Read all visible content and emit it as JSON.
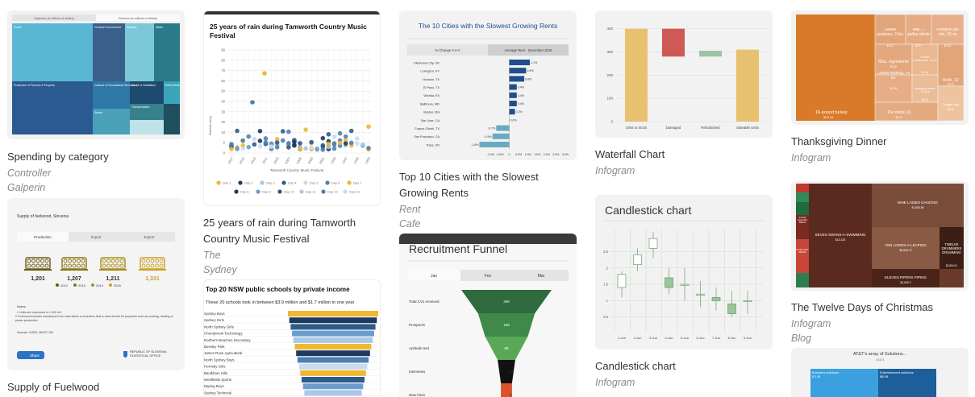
{
  "cards": [
    {
      "title": "Spending by category",
      "author": "Controller Galperin",
      "tabs": [
        "Expenses (in millions of dollars)",
        "Revenue (in millions of dollars)"
      ],
      "cells": [
        "Power",
        "General Government",
        "Industry",
        "Water",
        "Protection of Persons & Property",
        "Cultural & Recreational Services",
        "Health & Sanitation",
        "Public Works",
        "Transportation",
        "Sewer"
      ]
    },
    {
      "title": "25 years of rain during Tamworth Country Music Festival",
      "author": "The Sydney Morning Herald",
      "chart_title": "25 years of rain during Tamworth Country Music Festival",
      "ylabel": "Rainfall (mm)",
      "xlabel": "Tamworth Country Music Festival",
      "yticks": [
        "90",
        "80",
        "70",
        "60",
        "50",
        "40",
        "30",
        "20",
        "10",
        "5",
        "0"
      ],
      "xticks": [
        "2017",
        "2015",
        "2013",
        "2011",
        "2009",
        "2007",
        "2005",
        "2003",
        "2001",
        "1999",
        "1997",
        "1995",
        "1993"
      ],
      "legend": [
        "Day 1",
        "Day 2",
        "Day 3",
        "Day 4",
        "Day 5",
        "Day 6",
        "Day 7",
        "Day 8",
        "Day 9",
        "Day 10",
        "Day 11",
        "Day 12",
        "Day 13"
      ],
      "legend_colors": [
        "#f0b732",
        "#1e3a5f",
        "#a8c8e8",
        "#2e5c8a",
        "#c9ddf0",
        "#4f7fb0",
        "#f0b732",
        "#1e3a5f",
        "#6a9ccc",
        "#2e5c8a",
        "#a8c8e8",
        "#4f7fb0",
        "#c9ddf0"
      ]
    },
    {
      "title": "Top 10 Cities with the Slowest Growing Rents",
      "author": "Rent Cafe",
      "chart_title": "The 10 Cities with the Slowest Growing Rents",
      "tabs": [
        "% Change Y-o-Y",
        "Average Rent - December 2016"
      ],
      "chart_data": {
        "type": "bar",
        "categories": [
          "Oklahoma City, OK",
          "Lexington, KY",
          "Houston, TX",
          "El Paso, TX",
          "Wichita, KS",
          "Baltimore, MD",
          "Boston, MA",
          "San Jose, CA",
          "Corpus Christi, TX",
          "San Francisco, CA",
          "Tulsa, OK"
        ],
        "values": [
          1.1,
          0.9,
          0.8,
          0.4,
          0.4,
          0.4,
          0.3,
          0.0,
          -0.7,
          -0.9,
          -1.6
        ],
        "labels": [
          "1.1%",
          "0.9%",
          "0.8%",
          "0.4%",
          "0.4%",
          "0.4%",
          "0.3%",
          "0.0%",
          "-0.7%",
          "-0.9%",
          "-1.6%"
        ],
        "xticks": [
          "-1.0%",
          "-0.5%",
          "0",
          "0.5%",
          "1.0%",
          "1.5%",
          "2.0%",
          "2.5%",
          "3.0%"
        ],
        "xlim": [
          -1.75,
          3.0
        ]
      }
    },
    {
      "title": "Waterfall Chart",
      "author": "Infogram",
      "chart_data": {
        "type": "bar",
        "categories": [
          "Units in Stock",
          "Damaged",
          "Refurbished",
          "Saleable Units"
        ],
        "ranges": [
          [
            0,
            400
          ],
          [
            280,
            400
          ],
          [
            280,
            305
          ],
          [
            0,
            310
          ]
        ],
        "colors": [
          "#e8c170",
          "#cf5a55",
          "#9bc4a6",
          "#e8c170"
        ],
        "yticks": [
          "400",
          "300",
          "200",
          "100",
          "0"
        ],
        "ylim": [
          0,
          430
        ]
      }
    },
    {
      "title": "Thanksgiving Dinner",
      "author": "Infogram",
      "cells": [
        {
          "label": "16-pound turkey",
          "value": "$23.04"
        },
        {
          "label": "Sweet potatoes, 3 lbs.",
          "value": "$3.37"
        },
        {
          "label": "Milk, 1 gallon whole",
          "value": "$3.37"
        },
        {
          "label": "Pumpkin pie mix, 30 oz",
          "value": "$3.24"
        },
        {
          "label": "Misc. ingredients",
          "value": "$3.26"
        },
        {
          "label": "Frozen Cranberries, 12 oz",
          "value": "$2.44"
        },
        {
          "label": "Cubed stuffing, 14 oz.",
          "value": "$2.98"
        },
        {
          "label": "Rolls, 12",
          "value": "$2.27"
        },
        {
          "label": "Whipping cream, 1/2 pint",
          "value": "$2.02"
        },
        {
          "label": "Pie shells (2)",
          "value": "$2.47"
        },
        {
          "label": "Veggie tray",
          "value": "$0.74"
        }
      ]
    },
    {
      "title": "Supply of Fuelwood",
      "author": "",
      "chart_title": "Supply of fuelwood, Slovenia",
      "tabs": [
        "Production",
        "Import",
        "Export"
      ],
      "values": [
        "1,201",
        "1,207",
        "1,211",
        "1,331"
      ],
      "legend": [
        "2012",
        "2013",
        "2014",
        "2015"
      ],
      "notes_title": "Notes:",
      "notes": [
        "1 Units are expressed in 1,000 m3.",
        "2 Fuelwood includes roundwood from main stems or branches that is used as fuel for purposes such as cooking, heating or power production.",
        "Sources: SURS, MKGP, SIS"
      ],
      "share": "Share",
      "org": "REPUBLIC OF SLOVENIA STATISTICAL OFFICE"
    },
    {
      "title": "Top 20 NSW public schools by private income",
      "subtitle": "These 20 schools took in between $3.9 million and $1.7 million in one year",
      "schools": [
        "Sydney Boys",
        "Sydney Girls",
        "North Sydney Girls",
        "Cherrybrook Technology",
        "Northern Beaches Secondary",
        "Bossley Park",
        "James Ruse Agricultural",
        "North Sydney Boys",
        "Hornsby Girls",
        "Baulkham Hills",
        "Westfields Sports",
        "Epping Boys",
        "Sydney Technical"
      ]
    },
    {
      "title": "Recruitment Funnel",
      "tabs": [
        "Jan",
        "Fev",
        "Mar"
      ],
      "chart_data": {
        "type": "funnel",
        "stages": [
          "Total CVs received",
          "Prospects",
          "Aptitude test",
          "Interviews",
          "New hires"
        ],
        "values": [
          398,
          158,
          89,
          15,
          6
        ]
      }
    },
    {
      "title": "Candlestick chart",
      "author": "Infogram",
      "chart_title": "Candlestick chart",
      "chart_data": {
        "type": "candlestick",
        "categories": [
          "1-Jun",
          "2-Jun",
          "3-Jun",
          "4-Jun",
          "5-Jun",
          "6-Jun",
          "7-Jun",
          "8-Jun",
          "9-Jun"
        ],
        "open": [
          1.4,
          2.1,
          2.6,
          1.7,
          1.5,
          1.2,
          1.1,
          0.9,
          1.0
        ],
        "close": [
          1.8,
          2.4,
          2.9,
          1.4,
          1.5,
          1.2,
          1.0,
          0.6,
          1.0
        ],
        "high": [
          1.9,
          2.6,
          3.1,
          2.0,
          2.0,
          1.6,
          1.4,
          1.3,
          1.3
        ],
        "low": [
          1.1,
          1.9,
          2.3,
          1.2,
          1.0,
          0.8,
          0.7,
          0.5,
          0.6
        ],
        "yticks": [
          "2.5",
          "2",
          "1.5",
          "1",
          "0.5"
        ],
        "ylim": [
          0,
          3.2
        ]
      }
    },
    {
      "title": "The Twelve Days of Christmas",
      "author": "Infogram Blog",
      "cells": [
        {
          "label": "SEVEN SWANS-A-SWIMMING",
          "value": "$13,125"
        },
        {
          "label": "NINE LADIES DANCING",
          "value": "$7,553.58"
        },
        {
          "label": "TEN LORDS-A-LEAPING",
          "value": "$5,508.70"
        },
        {
          "label": "TWELVE DRUMMERS DRUMMING",
          "value": "$2,854.41"
        },
        {
          "label": "ELEVEN PIPERS PIPING",
          "value": "$2,635.2"
        },
        {
          "label": "FOUR CALLING BIRDS",
          "value": ""
        },
        {
          "label": "FIVE GOLD RINGS",
          "value": ""
        }
      ]
    },
    {
      "title": "AT&T's array of Solutions...",
      "subtitle": "USD $",
      "cells": [
        "Business solutions",
        "Entertainment solutions"
      ],
      "values": [
        "$71.0B",
        "$50.9B"
      ]
    }
  ]
}
